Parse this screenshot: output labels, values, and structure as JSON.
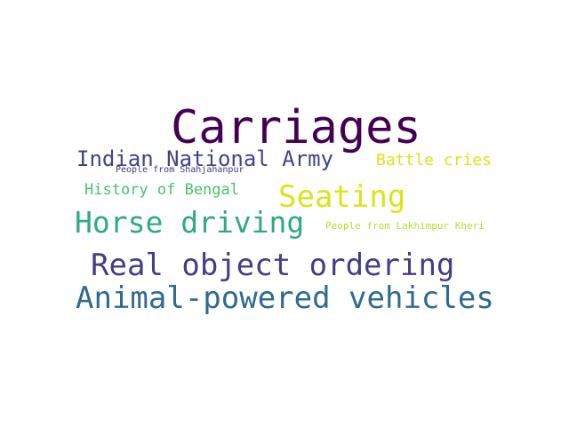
{
  "word_cloud": {
    "words": [
      {
        "id": "w-carriages",
        "text": "Carriages",
        "color": "#440154"
      },
      {
        "id": "w-ina",
        "text": "Indian National Army",
        "color": "#414487"
      },
      {
        "id": "w-shahjahanpur",
        "text": "People from Shahjahanpur",
        "color": "#46337e"
      },
      {
        "id": "w-battle",
        "text": "Battle cries",
        "color": "#dde318"
      },
      {
        "id": "w-bengal",
        "text": "History of Bengal",
        "color": "#4ac16d"
      },
      {
        "id": "w-seating",
        "text": "Seating",
        "color": "#dde318"
      },
      {
        "id": "w-horse",
        "text": "Horse driving",
        "color": "#2ea984"
      },
      {
        "id": "w-lakhimpur",
        "text": "People from Lakhimpur Kheri",
        "color": "#b5de2b"
      },
      {
        "id": "w-real",
        "text": "Real object ordering",
        "color": "#433e85"
      },
      {
        "id": "w-animal",
        "text": "Animal-powered vehicles",
        "color": "#2f6b8e"
      }
    ]
  }
}
